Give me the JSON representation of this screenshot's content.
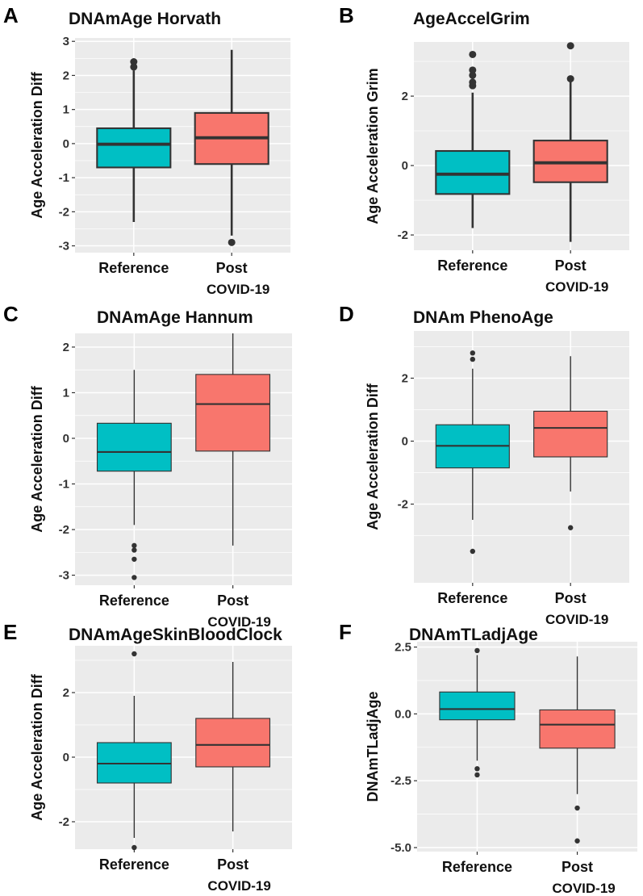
{
  "colors": {
    "reference": "#00BFC4",
    "post": "#F8766D",
    "panel_bg": "#EBEBEB",
    "grid": "#FFFFFF",
    "line": "#333333"
  },
  "chart_data": [
    {
      "type": "box",
      "panel": "A",
      "title": "DNAmAge Horvath",
      "ylabel": "Age Acceleration Diff",
      "categories": [
        "Reference",
        "Post"
      ],
      "category_sublabels": [
        "",
        "COVID-19"
      ],
      "ylim": [
        -3.2,
        3.1
      ],
      "yticks": [
        3,
        2,
        1,
        0,
        -1,
        -2,
        -3
      ],
      "ytick_labels": [
        "3",
        "2",
        "1",
        "0",
        "-1",
        "-2",
        "-3"
      ],
      "series": [
        {
          "name": "Reference",
          "q1": -0.7,
          "median": -0.02,
          "q3": 0.45,
          "whisker_low": -2.3,
          "whisker_high": 2.15,
          "outliers": [
            2.4,
            2.25
          ]
        },
        {
          "name": "Post COVID-19",
          "q1": -0.6,
          "median": 0.17,
          "q3": 0.9,
          "whisker_low": -2.7,
          "whisker_high": 2.75,
          "outliers": [
            -2.9
          ]
        }
      ]
    },
    {
      "type": "box",
      "panel": "B",
      "title": "AgeAccelGrim",
      "ylabel": "Age Acceleration Grim",
      "categories": [
        "Reference",
        "Post"
      ],
      "category_sublabels": [
        "",
        "COVID-19"
      ],
      "ylim": [
        -2.44,
        3.56
      ],
      "yticks": [
        2,
        0,
        -2
      ],
      "ytick_labels": [
        "2",
        "0",
        "-2"
      ],
      "series": [
        {
          "name": "Reference",
          "q1": -0.82,
          "median": -0.25,
          "q3": 0.42,
          "whisker_low": -1.8,
          "whisker_high": 2.1,
          "outliers": [
            2.3,
            2.4,
            2.6,
            2.75,
            3.2
          ]
        },
        {
          "name": "Post COVID-19",
          "q1": -0.48,
          "median": 0.08,
          "q3": 0.72,
          "whisker_low": -2.2,
          "whisker_high": 2.45,
          "outliers": [
            2.5,
            3.45
          ]
        }
      ]
    },
    {
      "type": "box",
      "panel": "C",
      "title": "DNAmAge Hannum",
      "ylabel": "Age Acceleration Diff",
      "categories": [
        "Reference",
        "Post"
      ],
      "category_sublabels": [
        "",
        "COVID-19"
      ],
      "ylim": [
        -3.22,
        2.3
      ],
      "yticks": [
        2,
        1,
        0,
        -1,
        -2,
        -3
      ],
      "ytick_labels": [
        "2",
        "1",
        "0",
        "-1",
        "-2",
        "-3"
      ],
      "series": [
        {
          "name": "Reference",
          "q1": -0.72,
          "median": -0.3,
          "q3": 0.33,
          "whisker_low": -1.9,
          "whisker_high": 1.5,
          "outliers": [
            -2.35,
            -2.45,
            -2.65,
            -3.05
          ]
        },
        {
          "name": "Post COVID-19",
          "q1": -0.28,
          "median": 0.75,
          "q3": 1.4,
          "whisker_low": -2.35,
          "whisker_high": 2.3,
          "outliers": []
        }
      ]
    },
    {
      "type": "box",
      "panel": "D",
      "title": "DNAm PhenoAge",
      "ylabel": "Age Acceleration Diff",
      "categories": [
        "Reference",
        "Post"
      ],
      "category_sublabels": [
        "",
        "COVID-19"
      ],
      "ylim": [
        -4.5,
        3.5
      ],
      "yticks": [
        2,
        0,
        -2
      ],
      "ytick_labels": [
        "2",
        "0",
        "-2"
      ],
      "series": [
        {
          "name": "Reference",
          "q1": -0.85,
          "median": -0.15,
          "q3": 0.52,
          "whisker_low": -2.5,
          "whisker_high": 2.3,
          "outliers": [
            2.6,
            2.8,
            -3.5
          ]
        },
        {
          "name": "Post COVID-19",
          "q1": -0.5,
          "median": 0.42,
          "q3": 0.95,
          "whisker_low": -1.6,
          "whisker_high": 2.7,
          "outliers": [
            -2.75
          ]
        }
      ]
    },
    {
      "type": "box",
      "panel": "E",
      "title": "DNAmAgeSkinBloodClock",
      "ylabel": "Age Acceleration Diff",
      "categories": [
        "Reference",
        "Post"
      ],
      "category_sublabels": [
        "",
        "COVID-19"
      ],
      "ylim": [
        -2.85,
        3.45
      ],
      "yticks": [
        2,
        0,
        -2
      ],
      "ytick_labels": [
        "2",
        "0",
        "-2"
      ],
      "series": [
        {
          "name": "Reference",
          "q1": -0.8,
          "median": -0.2,
          "q3": 0.45,
          "whisker_low": -2.5,
          "whisker_high": 1.9,
          "outliers": [
            3.2,
            -2.8
          ]
        },
        {
          "name": "Post COVID-19",
          "q1": -0.3,
          "median": 0.38,
          "q3": 1.2,
          "whisker_low": -2.3,
          "whisker_high": 2.95,
          "outliers": []
        }
      ]
    },
    {
      "type": "box",
      "panel": "F",
      "title": "DNAmTLadjAge",
      "ylabel": "DNAmTLadjAge",
      "categories": [
        "Reference",
        "Post"
      ],
      "category_sublabels": [
        "",
        "COVID-19"
      ],
      "ylim": [
        -5.15,
        2.7
      ],
      "yticks": [
        2.5,
        0,
        -2.5,
        -5
      ],
      "ytick_labels": [
        "2.5",
        "0.0",
        "-2.5",
        "-5.0"
      ],
      "series": [
        {
          "name": "Reference",
          "q1": -0.22,
          "median": 0.18,
          "q3": 0.82,
          "whisker_low": -1.75,
          "whisker_high": 2.2,
          "outliers": [
            2.37,
            -2.05,
            -2.28
          ]
        },
        {
          "name": "Post COVID-19",
          "q1": -1.28,
          "median": -0.4,
          "q3": 0.15,
          "whisker_low": -3.0,
          "whisker_high": 2.15,
          "outliers": [
            -3.52,
            -4.75
          ]
        }
      ]
    }
  ]
}
